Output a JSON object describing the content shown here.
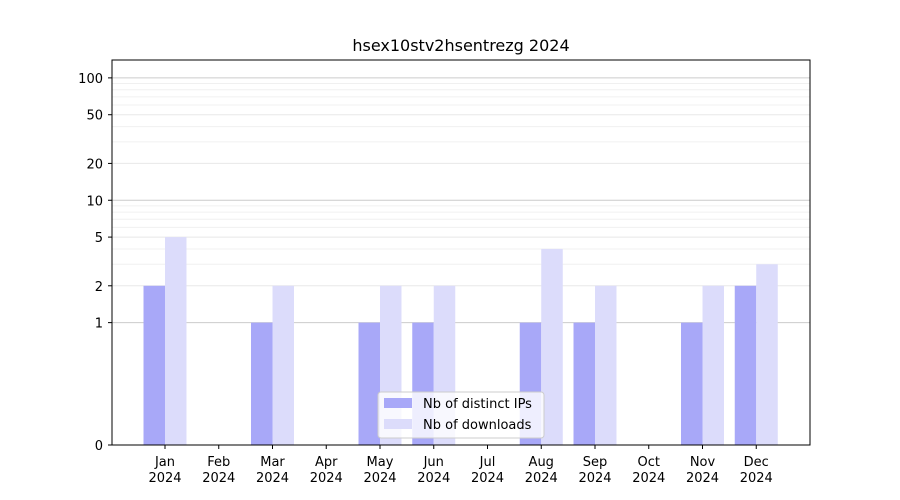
{
  "chart_data": {
    "type": "bar",
    "title": "hsex10stv2hsentrezg 2024",
    "xlabel": "",
    "ylabel": "",
    "y_scale": "symlog",
    "ylim": [
      0,
      140
    ],
    "yticks": [
      0,
      1,
      2,
      5,
      10,
      20,
      50,
      100
    ],
    "ytick_labels": [
      "0",
      "1",
      "2",
      "5",
      "10",
      "20",
      "50",
      "100"
    ],
    "categories": [
      "Jan\n2024",
      "Feb\n2024",
      "Mar\n2024",
      "Apr\n2024",
      "May\n2024",
      "Jun\n2024",
      "Jul\n2024",
      "Aug\n2024",
      "Sep\n2024",
      "Oct\n2024",
      "Nov\n2024",
      "Dec\n2024"
    ],
    "series": [
      {
        "name": "Nb of distinct IPs",
        "color": "#a8a8f8",
        "values": [
          2,
          0,
          1,
          0,
          1,
          1,
          0,
          1,
          1,
          0,
          1,
          2
        ]
      },
      {
        "name": "Nb of downloads",
        "color": "#dcdcfb",
        "values": [
          5,
          0,
          2,
          0,
          2,
          2,
          0,
          4,
          2,
          0,
          2,
          3
        ]
      }
    ],
    "grid": true,
    "legend_position": "lower center"
  }
}
